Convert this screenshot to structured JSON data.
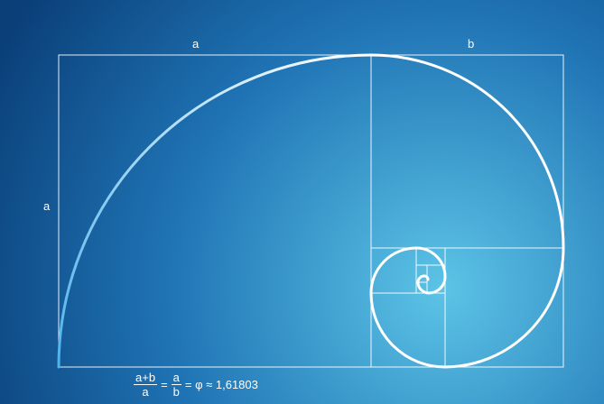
{
  "labels": {
    "top_a": "a",
    "top_b": "b",
    "side_a": "a"
  },
  "formula": {
    "frac1_num": "a+b",
    "frac1_den": "a",
    "eq1": "=",
    "frac2_num": "a",
    "frac2_den": "b",
    "rest": "= φ ≈ 1,61803"
  },
  "colors": {
    "background_dark": "#0a3f78",
    "background_light": "#5cc4e6",
    "lines": "#ffffff",
    "spiral_start": "#4fb3ec"
  }
}
